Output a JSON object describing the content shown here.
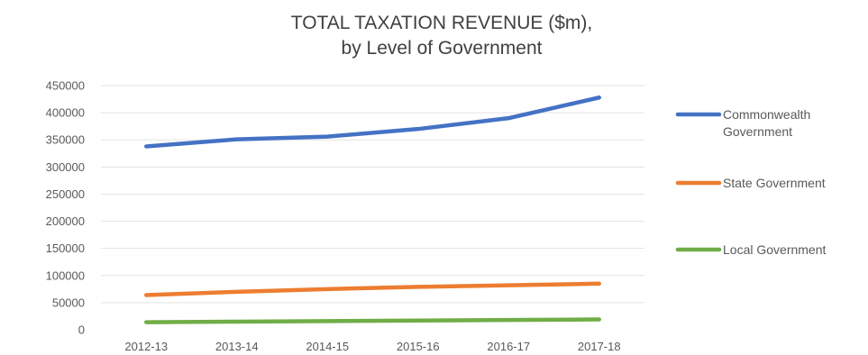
{
  "chart_data": {
    "type": "line",
    "title": [
      "TOTAL TAXATION REVENUE ($m),",
      "by Level of Government"
    ],
    "xlabel": "",
    "ylabel": "",
    "categories": [
      "2012-13",
      "2013-14",
      "2014-15",
      "2015-16",
      "2016-17",
      "2017-18"
    ],
    "ylim": [
      0,
      450000
    ],
    "y_ticks": [
      "450000",
      "400000",
      "350000",
      "300000",
      "250000",
      "200000",
      "150000",
      "100000",
      "50000",
      "0"
    ],
    "grid": true,
    "legend": "right",
    "series": [
      {
        "name": [
          "Commonwealth",
          "Government"
        ],
        "color": "#4472c4",
        "values": [
          338000,
          351000,
          356000,
          370000,
          390000,
          428000
        ]
      },
      {
        "name": [
          "State Government"
        ],
        "color": "#ed7d31",
        "values": [
          64000,
          70000,
          75000,
          79000,
          82000,
          85000
        ]
      },
      {
        "name": [
          "Local Government"
        ],
        "color": "#70ad47",
        "values": [
          14000,
          15000,
          16000,
          17000,
          18000,
          19000
        ]
      }
    ]
  }
}
